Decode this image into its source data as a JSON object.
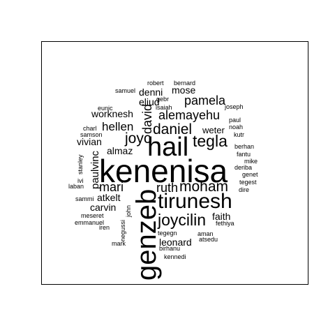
{
  "wordcloud": {
    "words": [
      {
        "text": "kenenisa",
        "rotated": false
      },
      {
        "text": "genzeb",
        "rotated": true
      },
      {
        "text": "hail",
        "rotated": false
      },
      {
        "text": "tirunesh",
        "rotated": false
      },
      {
        "text": "joycilin",
        "rotated": false
      },
      {
        "text": "tegla",
        "rotated": false
      },
      {
        "text": "daniel",
        "rotated": false
      },
      {
        "text": "joyc",
        "rotated": false
      },
      {
        "text": "moham",
        "rotated": false
      },
      {
        "text": "mari",
        "rotated": false
      },
      {
        "text": "ruth",
        "rotated": false
      },
      {
        "text": "pamela",
        "rotated": false
      },
      {
        "text": "alemayehu",
        "rotated": false
      },
      {
        "text": "hellen",
        "rotated": false
      },
      {
        "text": "david",
        "rotated": true
      },
      {
        "text": "paulvinc",
        "rotated": true
      },
      {
        "text": "almaz",
        "rotated": false
      },
      {
        "text": "vivian",
        "rotated": false
      },
      {
        "text": "worknesh",
        "rotated": false
      },
      {
        "text": "weter",
        "rotated": false
      },
      {
        "text": "atkelt",
        "rotated": false
      },
      {
        "text": "carvin",
        "rotated": false
      },
      {
        "text": "leonard",
        "rotated": false
      },
      {
        "text": "faith",
        "rotated": false
      },
      {
        "text": "denni",
        "rotated": false
      },
      {
        "text": "mose",
        "rotated": false
      },
      {
        "text": "eliud",
        "rotated": false
      },
      {
        "text": "robert",
        "rotated": false
      },
      {
        "text": "bernard",
        "rotated": false
      },
      {
        "text": "samuel",
        "rotated": false
      },
      {
        "text": "gebr",
        "rotated": false
      },
      {
        "text": "isaiah",
        "rotated": false
      },
      {
        "text": "joseph",
        "rotated": false
      },
      {
        "text": "eunic",
        "rotated": false
      },
      {
        "text": "paul",
        "rotated": false
      },
      {
        "text": "noah",
        "rotated": false
      },
      {
        "text": "kutr",
        "rotated": false
      },
      {
        "text": "charl",
        "rotated": false
      },
      {
        "text": "samson",
        "rotated": false
      },
      {
        "text": "berhan",
        "rotated": false
      },
      {
        "text": "fantu",
        "rotated": false
      },
      {
        "text": "mike",
        "rotated": false
      },
      {
        "text": "deriba",
        "rotated": false
      },
      {
        "text": "genet",
        "rotated": false
      },
      {
        "text": "tegest",
        "rotated": false
      },
      {
        "text": "dire",
        "rotated": false
      },
      {
        "text": "stanley",
        "rotated": true
      },
      {
        "text": "ivi",
        "rotated": false
      },
      {
        "text": "laban",
        "rotated": false
      },
      {
        "text": "sammi",
        "rotated": false
      },
      {
        "text": "john",
        "rotated": true
      },
      {
        "text": "meseret",
        "rotated": false
      },
      {
        "text": "emmanuel",
        "rotated": false
      },
      {
        "text": "negussi",
        "rotated": true
      },
      {
        "text": "iren",
        "rotated": false
      },
      {
        "text": "mark",
        "rotated": false
      },
      {
        "text": "fethiya",
        "rotated": false
      },
      {
        "text": "tegegn",
        "rotated": false
      },
      {
        "text": "aman",
        "rotated": false
      },
      {
        "text": "atsedu",
        "rotated": false
      },
      {
        "text": "birhanu",
        "rotated": false
      },
      {
        "text": "kennedi",
        "rotated": false
      }
    ]
  }
}
